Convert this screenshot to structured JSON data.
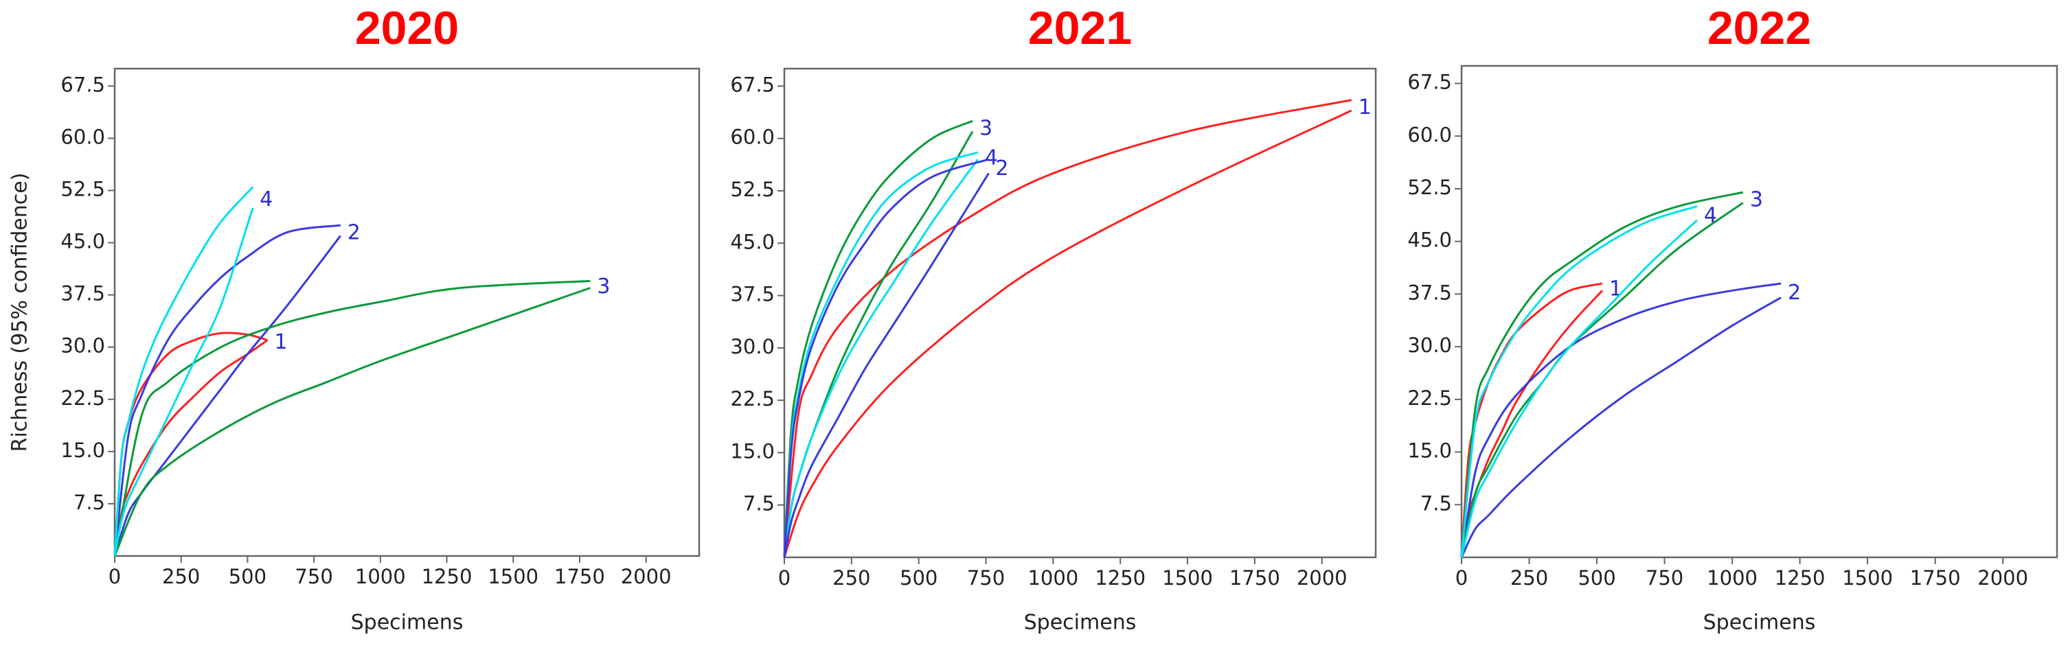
{
  "chart_data": [
    {
      "type": "line",
      "title": "2020",
      "xlabel": "Specimens",
      "ylabel": "Richness (95% confidence)",
      "xlim": [
        0,
        2200
      ],
      "xticks": [
        0,
        250,
        500,
        750,
        1000,
        1250,
        1500,
        1750,
        2000
      ],
      "ylim": [
        0,
        70
      ],
      "yticks": [
        7.5,
        {
          "value": 15,
          "label": "15.0"
        },
        22.5,
        {
          "value": 30,
          "label": "30.0"
        },
        37.5,
        {
          "value": 45,
          "label": "45.0"
        },
        52.5,
        {
          "value": 60,
          "label": "60.0"
        },
        67.5
      ],
      "series": [
        {
          "name": "1",
          "color": "#ff2020",
          "x": [
            0,
            25,
            50,
            100,
            200,
            300,
            400,
            500,
            575
          ],
          "upper": [
            0,
            14,
            19,
            24,
            29,
            31,
            32,
            31.8,
            31
          ],
          "lower": [
            0,
            6,
            9,
            13,
            19,
            23,
            26.5,
            29,
            31
          ]
        },
        {
          "name": "2",
          "color": "#3a3ae0",
          "x": [
            0,
            50,
            100,
            200,
            300,
            400,
            500,
            650,
            850
          ],
          "upper": [
            0,
            17,
            23,
            31,
            36,
            40,
            43,
            46.5,
            47.5
          ],
          "lower": [
            0,
            6,
            9,
            14,
            19,
            24,
            29,
            36,
            46
          ]
        },
        {
          "name": "3",
          "color": "#0a9a3a",
          "x": [
            0,
            100,
            200,
            400,
            600,
            800,
            1000,
            1300,
            1790
          ],
          "upper": [
            0,
            20,
            25,
            30,
            33,
            35,
            36.5,
            38.5,
            39.5
          ],
          "lower": [
            0,
            9,
            13,
            18,
            22,
            25,
            28,
            32,
            38.5
          ]
        },
        {
          "name": "4",
          "color": "#00e0ee",
          "x": [
            0,
            25,
            50,
            100,
            150,
            200,
            300,
            400,
            520
          ],
          "upper": [
            0,
            14,
            19,
            26,
            31,
            35,
            42,
            48,
            53
          ],
          "lower": [
            0,
            5,
            8,
            12,
            16,
            20,
            28,
            36,
            50
          ]
        }
      ]
    },
    {
      "type": "line",
      "title": "2021",
      "xlabel": "Specimens",
      "xlim": [
        0,
        2200
      ],
      "xticks": [
        0,
        250,
        500,
        750,
        1000,
        1250,
        1500,
        1750,
        2000
      ],
      "ylim": [
        0,
        70
      ],
      "yticks": [
        7.5,
        {
          "value": 15,
          "label": "15.0"
        },
        22.5,
        {
          "value": 30,
          "label": "30.0"
        },
        37.5,
        {
          "value": 45,
          "label": "45.0"
        },
        52.5,
        {
          "value": 60,
          "label": "60.0"
        },
        67.5
      ],
      "series": [
        {
          "name": "1",
          "color": "#ff2020",
          "x": [
            0,
            50,
            100,
            200,
            400,
            700,
            1000,
            1500,
            2110
          ],
          "upper": [
            0,
            20,
            26,
            33,
            41,
            49,
            55,
            61,
            65.5
          ],
          "lower": [
            0,
            6,
            10,
            16,
            25,
            35,
            43,
            53,
            64
          ]
        },
        {
          "name": "3",
          "color": "#0a9a3a",
          "x": [
            0,
            25,
            50,
            100,
            200,
            300,
            400,
            550,
            700
          ],
          "upper": [
            0,
            18,
            25,
            33,
            43,
            50,
            55,
            60,
            62.5
          ],
          "lower": [
            0,
            7,
            11,
            17,
            27,
            35,
            42,
            51,
            61
          ]
        },
        {
          "name": "4",
          "color": "#00e0ee",
          "x": [
            0,
            25,
            50,
            100,
            200,
            300,
            400,
            550,
            720
          ],
          "upper": [
            0,
            16,
            23,
            31,
            40,
            47,
            52,
            56,
            58
          ],
          "lower": [
            0,
            7,
            11,
            17,
            26,
            33,
            39,
            48,
            57
          ]
        },
        {
          "name": "2",
          "color": "#3a3ae0",
          "x": [
            0,
            25,
            50,
            100,
            200,
            300,
            400,
            550,
            760
          ],
          "upper": [
            0,
            15,
            22,
            30,
            39,
            45,
            50,
            54.5,
            57
          ],
          "lower": [
            0,
            5,
            8,
            13,
            20,
            27,
            33,
            42,
            55
          ]
        }
      ]
    },
    {
      "type": "line",
      "title": "2022",
      "xlabel": "Specimens",
      "xlim": [
        0,
        2200
      ],
      "xticks": [
        0,
        250,
        500,
        750,
        1000,
        1250,
        1500,
        1750,
        2000
      ],
      "ylim": [
        0,
        70
      ],
      "yticks": [
        7.5,
        {
          "value": 15,
          "label": "15.0"
        },
        22.5,
        {
          "value": 30,
          "label": "30.0"
        },
        37.5,
        {
          "value": 45,
          "label": "45.0"
        },
        52.5,
        {
          "value": 60,
          "label": "60.0"
        },
        67.5
      ],
      "series": [
        {
          "name": "1",
          "color": "#ff2020",
          "x": [
            0,
            25,
            50,
            100,
            150,
            200,
            300,
            400,
            520
          ],
          "upper": [
            0,
            14,
            19,
            25,
            29,
            32,
            35.5,
            38,
            39
          ],
          "lower": [
            0,
            6,
            9,
            14,
            18,
            22,
            28,
            33,
            38
          ]
        },
        {
          "name": "2",
          "color": "#3a3ae0",
          "x": [
            0,
            50,
            100,
            200,
            400,
            600,
            800,
            1000,
            1180
          ],
          "upper": [
            0,
            12,
            17,
            23,
            30,
            34,
            36.5,
            38,
            39
          ],
          "lower": [
            0,
            4,
            6,
            10,
            17,
            23,
            28,
            33,
            37
          ]
        },
        {
          "name": "3",
          "color": "#0a9a3a",
          "x": [
            0,
            50,
            100,
            200,
            300,
            400,
            600,
            800,
            1040
          ],
          "upper": [
            0,
            21,
            27,
            34,
            39,
            42,
            47,
            50,
            52
          ],
          "lower": [
            0,
            9,
            13,
            20,
            25,
            30,
            37,
            44,
            50.5
          ]
        },
        {
          "name": "4",
          "color": "#00e0ee",
          "x": [
            0,
            50,
            100,
            200,
            300,
            400,
            550,
            700,
            870
          ],
          "upper": [
            0,
            19,
            25,
            32,
            37,
            41,
            45,
            48,
            50
          ],
          "lower": [
            0,
            8,
            12,
            19,
            25,
            30,
            36,
            42,
            48
          ]
        }
      ]
    }
  ]
}
